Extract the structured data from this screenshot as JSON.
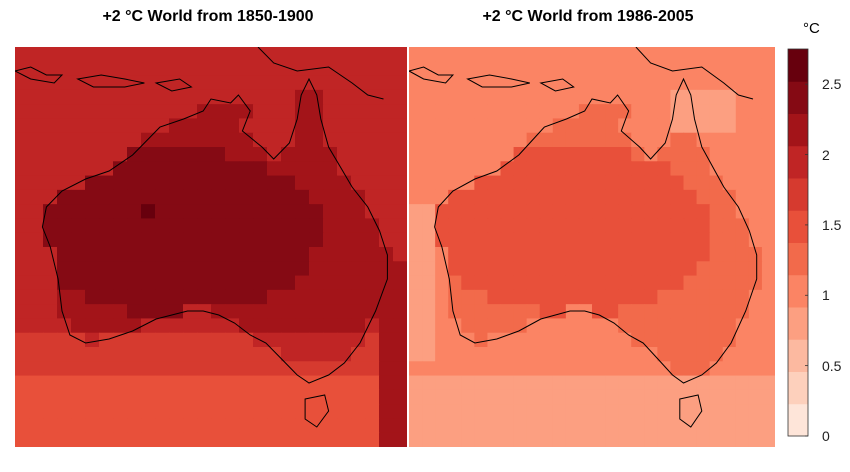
{
  "maps": [
    {
      "id": "left",
      "title": "+2 °C World from 1850-1900"
    },
    {
      "id": "right",
      "title": "+2 °C World from 1986-2005"
    }
  ],
  "colorbar": {
    "unit": "°C",
    "min": 0,
    "max": 2.75,
    "step": 0.25,
    "tick_labels": [
      {
        "value": 0,
        "label": "0"
      },
      {
        "value": 0.5,
        "label": "0.5"
      },
      {
        "value": 1,
        "label": "1"
      },
      {
        "value": 1.5,
        "label": "1.5"
      },
      {
        "value": 2,
        "label": "2"
      },
      {
        "value": 2.5,
        "label": "2.5"
      }
    ],
    "colors": [
      "#fee5d9",
      "#fdd0bc",
      "#fcb9a0",
      "#fc9f81",
      "#fb8464",
      "#f26a4b",
      "#e8503a",
      "#d63a2f",
      "#c02525",
      "#a31419",
      "#850a14",
      "#67000d"
    ]
  },
  "colors": {
    "coastline": "#000000",
    "background": "#ffffff"
  }
}
